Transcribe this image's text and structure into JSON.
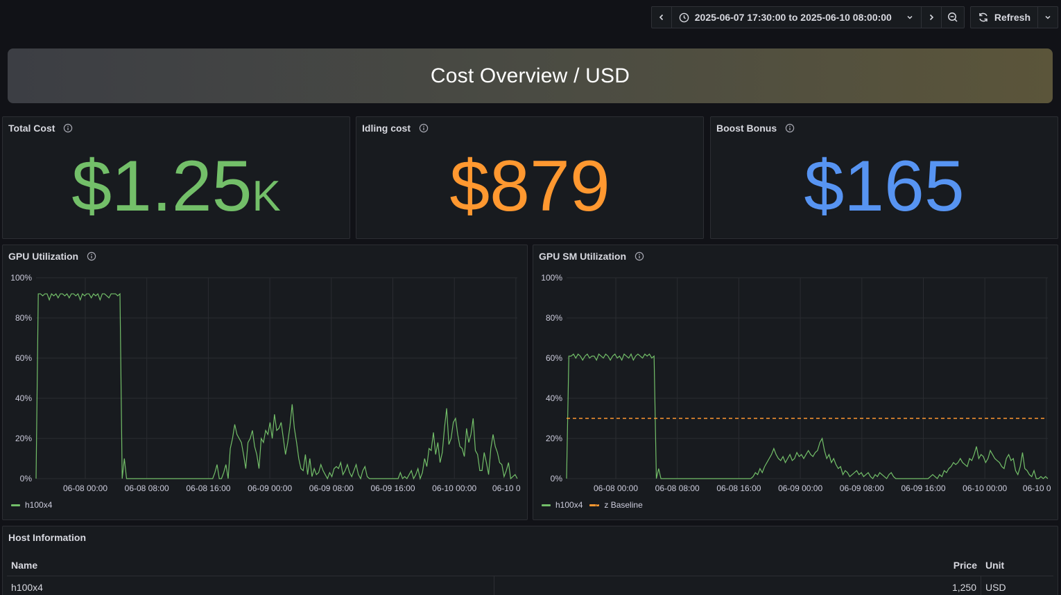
{
  "toolbar": {
    "time_range": "2025-06-07 17:30:00 to 2025-06-10 08:00:00",
    "refresh_label": "Refresh"
  },
  "banner": {
    "title": "Cost Overview / USD"
  },
  "stats": [
    {
      "title": "Total Cost",
      "value": "$1.25",
      "suffix": "K",
      "color": "#73bf69"
    },
    {
      "title": "Idling cost",
      "value": "$879",
      "suffix": "",
      "color": "#ff9830"
    },
    {
      "title": "Boost Bonus",
      "value": "$165",
      "suffix": "",
      "color": "#5794f2"
    }
  ],
  "charts": {
    "gpu_util": {
      "title": "GPU Utilization",
      "legend": [
        {
          "name": "h100x4",
          "color": "#73bf69",
          "dashed": false
        }
      ]
    },
    "gpu_sm_util": {
      "title": "GPU SM Utilization",
      "legend": [
        {
          "name": "h100x4",
          "color": "#73bf69",
          "dashed": false
        },
        {
          "name": "z Baseline",
          "color": "#ff9830",
          "dashed": true
        }
      ]
    }
  },
  "chart_data": [
    {
      "type": "line",
      "title": "GPU Utilization",
      "x_ticks": [
        "06-08 00:00",
        "06-08 08:00",
        "06-08 16:00",
        "06-09 00:00",
        "06-09 08:00",
        "06-09 16:00",
        "06-10 00:00",
        "06-10 0"
      ],
      "y_ticks": [
        "0%",
        "20%",
        "40%",
        "60%",
        "80%",
        "100%"
      ],
      "ylim": [
        0,
        100
      ],
      "grid": true,
      "legend_position": "bottom-left",
      "series": [
        {
          "name": "h100x4",
          "color": "#73bf69",
          "values": [
            0,
            92,
            92,
            91,
            92,
            92,
            89,
            92,
            91,
            92,
            90,
            92,
            92,
            91,
            92,
            90,
            92,
            92,
            91,
            92,
            89,
            92,
            91,
            92,
            92,
            90,
            92,
            91,
            92,
            89,
            92,
            92,
            91,
            90,
            92,
            92,
            92,
            91,
            92,
            0,
            10,
            0,
            0,
            0,
            0,
            0,
            0,
            0,
            0,
            0,
            0,
            0,
            0,
            0,
            0,
            0,
            0,
            0,
            0,
            0,
            0,
            0,
            0,
            0,
            0,
            0,
            0,
            0,
            0,
            0,
            0,
            0,
            0,
            0,
            0,
            0,
            0,
            0,
            0,
            0,
            0,
            3,
            7,
            0,
            0,
            3,
            7,
            0,
            15,
            20,
            27,
            22,
            20,
            18,
            12,
            5,
            18,
            20,
            24,
            16,
            12,
            5,
            20,
            18,
            24,
            22,
            28,
            20,
            32,
            24,
            25,
            28,
            20,
            12,
            18,
            26,
            37,
            25,
            18,
            10,
            5,
            4,
            12,
            2,
            10,
            1,
            5,
            2,
            3,
            7,
            4,
            2,
            0,
            3,
            1,
            5,
            6,
            5,
            8,
            2,
            4,
            7,
            3,
            1,
            4,
            7,
            2,
            0,
            4,
            6,
            1,
            0,
            0,
            0,
            0,
            0,
            0,
            0,
            0,
            0,
            0,
            0,
            0,
            0,
            0,
            3,
            0,
            1,
            0,
            2,
            4,
            0,
            2,
            5,
            0,
            3,
            10,
            6,
            15,
            14,
            23,
            12,
            18,
            8,
            13,
            25,
            35,
            17,
            20,
            28,
            30,
            22,
            16,
            15,
            11,
            25,
            18,
            22,
            30,
            14,
            12,
            4,
            4,
            13,
            8,
            2,
            15,
            22,
            16,
            13,
            8,
            7,
            1,
            4,
            8,
            0,
            1,
            2,
            0
          ]
        }
      ]
    },
    {
      "type": "line",
      "title": "GPU SM Utilization",
      "x_ticks": [
        "06-08 00:00",
        "06-08 08:00",
        "06-08 16:00",
        "06-09 00:00",
        "06-09 08:00",
        "06-09 16:00",
        "06-10 00:00",
        "06-10 0"
      ],
      "y_ticks": [
        "0%",
        "20%",
        "40%",
        "60%",
        "80%",
        "100%"
      ],
      "ylim": [
        0,
        100
      ],
      "grid": true,
      "legend_position": "bottom-left",
      "series": [
        {
          "name": "h100x4",
          "color": "#73bf69",
          "values": [
            0,
            61,
            61,
            62,
            60,
            62,
            61,
            59,
            61,
            62,
            60,
            61,
            61,
            59,
            62,
            61,
            60,
            62,
            61,
            59,
            61,
            62,
            60,
            61,
            59,
            62,
            61,
            60,
            62,
            59,
            61,
            62,
            61,
            60,
            62,
            61,
            62,
            60,
            61,
            0,
            5,
            0,
            0,
            0,
            0,
            0,
            0,
            0,
            0,
            0,
            0,
            0,
            0,
            0,
            0,
            0,
            0,
            0,
            0,
            0,
            0,
            0,
            0,
            0,
            0,
            0,
            0,
            0,
            0,
            0,
            0,
            0,
            0,
            0,
            0,
            0,
            0,
            0,
            0,
            0,
            0,
            1,
            3,
            2,
            5,
            3,
            6,
            8,
            10,
            12,
            15,
            12,
            10,
            9,
            11,
            8,
            10,
            12,
            9,
            10,
            13,
            11,
            12,
            10,
            12,
            14,
            12,
            11,
            13,
            14,
            18,
            20,
            14,
            10,
            12,
            8,
            10,
            7,
            5,
            6,
            2,
            4,
            3,
            1,
            2,
            3,
            4,
            2,
            3,
            1,
            2,
            3,
            1,
            0,
            2,
            1,
            3,
            2,
            1,
            0,
            2,
            3,
            1,
            0,
            0,
            0,
            0,
            0,
            0,
            0,
            0,
            0,
            0,
            0,
            0,
            0,
            0,
            0,
            1,
            2,
            1,
            0,
            2,
            1,
            4,
            3,
            5,
            6,
            8,
            7,
            8,
            10,
            8,
            7,
            6,
            10,
            9,
            12,
            16,
            10,
            12,
            11,
            8,
            10,
            14,
            12,
            10,
            9,
            8,
            6,
            5,
            10,
            12,
            9,
            10,
            4,
            2,
            6,
            13,
            5,
            4,
            2,
            1,
            4,
            0,
            0,
            1,
            0,
            1,
            0
          ]
        },
        {
          "name": "z Baseline",
          "color": "#ff9830",
          "values": [
            30,
            30
          ],
          "style": "dashed"
        }
      ]
    }
  ],
  "table": {
    "title": "Host Information",
    "headers": {
      "name": "Name",
      "price": "Price",
      "unit": "Unit"
    },
    "rows": [
      {
        "name": "h100x4",
        "price": "1,250",
        "unit": "USD"
      }
    ]
  }
}
